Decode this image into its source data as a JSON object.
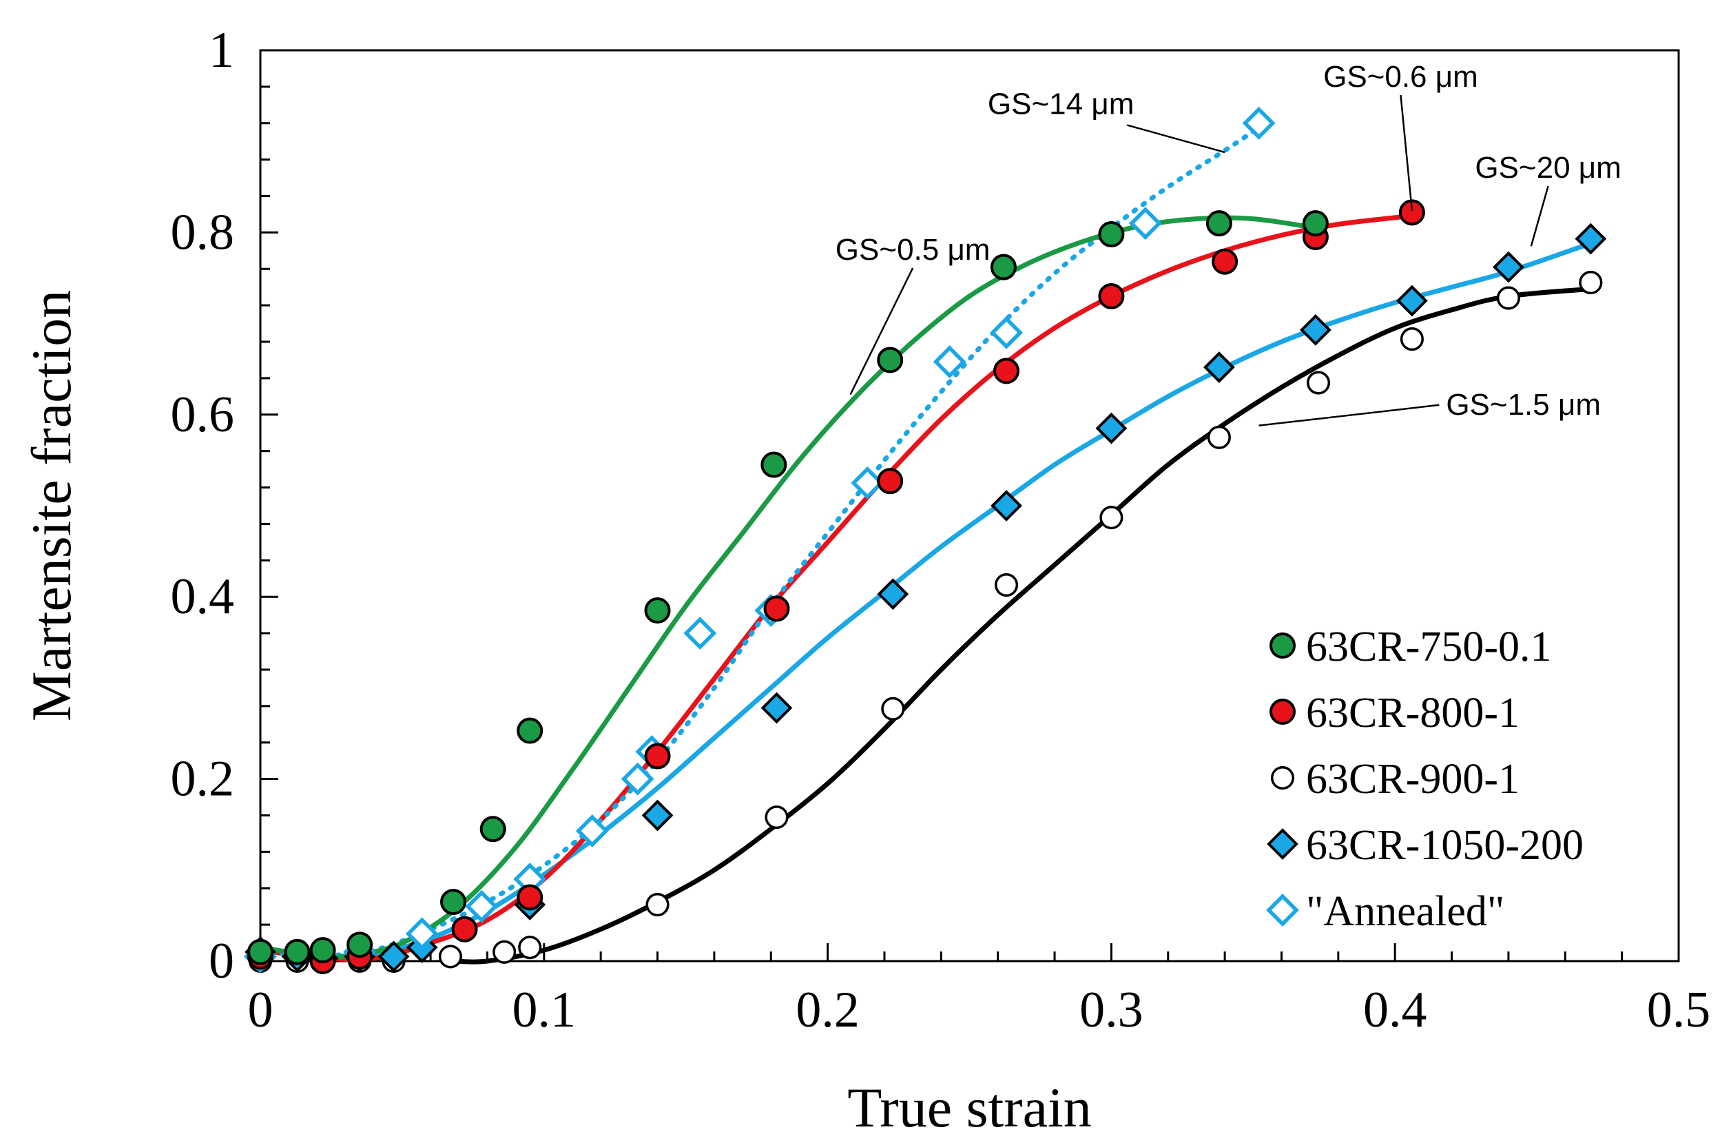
{
  "chart_data": {
    "type": "scatter",
    "title": "",
    "xlabel": "True strain",
    "ylabel": "Martensite fraction",
    "xlim": [
      0,
      0.5
    ],
    "ylim": [
      0,
      1
    ],
    "x_ticks": [
      "0",
      "0.1",
      "0.2",
      "0.3",
      "0.4",
      "0.5"
    ],
    "y_ticks": [
      "0",
      "0.2",
      "0.4",
      "0.6",
      "0.8",
      "1"
    ],
    "x_tick_values": [
      0,
      0.1,
      0.2,
      0.3,
      0.4,
      0.5
    ],
    "y_tick_values": [
      0,
      0.2,
      0.4,
      0.6,
      0.8,
      1
    ],
    "grid": false,
    "legend_position": "bottom-right",
    "series": [
      {
        "name": "63CR-750-0.1",
        "marker": "circle-filled",
        "color": "#1a9a45",
        "line_color": "#1a9a45",
        "line_style": "solid",
        "points": [
          [
            0.0,
            0.01
          ],
          [
            0.013,
            0.01
          ],
          [
            0.022,
            0.012
          ],
          [
            0.035,
            0.018
          ],
          [
            0.068,
            0.065
          ],
          [
            0.082,
            0.145
          ],
          [
            0.095,
            0.253
          ],
          [
            0.14,
            0.385
          ],
          [
            0.181,
            0.545
          ],
          [
            0.222,
            0.66
          ],
          [
            0.262,
            0.762
          ],
          [
            0.3,
            0.798
          ],
          [
            0.338,
            0.81
          ],
          [
            0.372,
            0.81
          ]
        ],
        "curve": [
          [
            0.0,
            0.015
          ],
          [
            0.015,
            0.008
          ],
          [
            0.03,
            0.005
          ],
          [
            0.05,
            0.02
          ],
          [
            0.07,
            0.06
          ],
          [
            0.09,
            0.125
          ],
          [
            0.11,
            0.21
          ],
          [
            0.13,
            0.3
          ],
          [
            0.15,
            0.39
          ],
          [
            0.17,
            0.47
          ],
          [
            0.19,
            0.55
          ],
          [
            0.21,
            0.62
          ],
          [
            0.23,
            0.68
          ],
          [
            0.25,
            0.73
          ],
          [
            0.27,
            0.765
          ],
          [
            0.29,
            0.79
          ],
          [
            0.31,
            0.807
          ],
          [
            0.33,
            0.815
          ],
          [
            0.35,
            0.815
          ],
          [
            0.372,
            0.805
          ]
        ]
      },
      {
        "name": "63CR-800-1",
        "marker": "circle-filled",
        "color": "#e8121b",
        "line_color": "#e8121b",
        "line_style": "solid",
        "points": [
          [
            0.0,
            0.005
          ],
          [
            0.022,
            0.0
          ],
          [
            0.035,
            0.005
          ],
          [
            0.072,
            0.035
          ],
          [
            0.095,
            0.07
          ],
          [
            0.14,
            0.225
          ],
          [
            0.182,
            0.387
          ],
          [
            0.222,
            0.527
          ],
          [
            0.263,
            0.648
          ],
          [
            0.3,
            0.73
          ],
          [
            0.34,
            0.768
          ],
          [
            0.372,
            0.795
          ],
          [
            0.406,
            0.822
          ]
        ],
        "curve": [
          [
            0.0,
            0.012
          ],
          [
            0.02,
            0.004
          ],
          [
            0.04,
            0.003
          ],
          [
            0.06,
            0.02
          ],
          [
            0.08,
            0.045
          ],
          [
            0.1,
            0.09
          ],
          [
            0.12,
            0.155
          ],
          [
            0.14,
            0.23
          ],
          [
            0.16,
            0.31
          ],
          [
            0.18,
            0.39
          ],
          [
            0.2,
            0.46
          ],
          [
            0.22,
            0.53
          ],
          [
            0.24,
            0.595
          ],
          [
            0.26,
            0.65
          ],
          [
            0.28,
            0.695
          ],
          [
            0.3,
            0.73
          ],
          [
            0.32,
            0.758
          ],
          [
            0.34,
            0.78
          ],
          [
            0.36,
            0.797
          ],
          [
            0.38,
            0.809
          ],
          [
            0.405,
            0.818
          ]
        ]
      },
      {
        "name": "63CR-900-1",
        "marker": "circle-open",
        "color": "#000000",
        "line_color": "#000000",
        "line_style": "solid",
        "points": [
          [
            0.0,
            0.0
          ],
          [
            0.013,
            0.0
          ],
          [
            0.022,
            0.0
          ],
          [
            0.035,
            0.0
          ],
          [
            0.047,
            0.0
          ],
          [
            0.067,
            0.005
          ],
          [
            0.086,
            0.01
          ],
          [
            0.095,
            0.015
          ],
          [
            0.14,
            0.062
          ],
          [
            0.182,
            0.158
          ],
          [
            0.223,
            0.277
          ],
          [
            0.263,
            0.413
          ],
          [
            0.3,
            0.487
          ],
          [
            0.338,
            0.575
          ],
          [
            0.373,
            0.635
          ],
          [
            0.406,
            0.683
          ],
          [
            0.44,
            0.728
          ],
          [
            0.469,
            0.745
          ]
        ],
        "curve": [
          [
            0.068,
            0.0
          ],
          [
            0.08,
            0.0
          ],
          [
            0.1,
            0.012
          ],
          [
            0.12,
            0.035
          ],
          [
            0.14,
            0.065
          ],
          [
            0.16,
            0.1
          ],
          [
            0.18,
            0.145
          ],
          [
            0.2,
            0.195
          ],
          [
            0.22,
            0.255
          ],
          [
            0.24,
            0.32
          ],
          [
            0.26,
            0.38
          ],
          [
            0.28,
            0.435
          ],
          [
            0.3,
            0.49
          ],
          [
            0.32,
            0.545
          ],
          [
            0.34,
            0.59
          ],
          [
            0.36,
            0.63
          ],
          [
            0.38,
            0.665
          ],
          [
            0.4,
            0.695
          ],
          [
            0.42,
            0.715
          ],
          [
            0.44,
            0.73
          ],
          [
            0.469,
            0.738
          ]
        ]
      },
      {
        "name": "63CR-1050-200",
        "marker": "diamond-filled",
        "color": "#1aa7e6",
        "line_color": "#1aa7e6",
        "line_style": "solid",
        "points": [
          [
            0.0,
            0.01
          ],
          [
            0.013,
            0.005
          ],
          [
            0.022,
            0.003
          ],
          [
            0.035,
            0.005
          ],
          [
            0.047,
            0.005
          ],
          [
            0.057,
            0.015
          ],
          [
            0.095,
            0.062
          ],
          [
            0.14,
            0.16
          ],
          [
            0.182,
            0.278
          ],
          [
            0.223,
            0.403
          ],
          [
            0.263,
            0.5
          ],
          [
            0.3,
            0.585
          ],
          [
            0.338,
            0.652
          ],
          [
            0.372,
            0.693
          ],
          [
            0.406,
            0.725
          ],
          [
            0.44,
            0.762
          ],
          [
            0.469,
            0.793
          ]
        ],
        "curve": [
          [
            0.0,
            0.012
          ],
          [
            0.02,
            0.006
          ],
          [
            0.04,
            0.008
          ],
          [
            0.06,
            0.025
          ],
          [
            0.08,
            0.055
          ],
          [
            0.1,
            0.095
          ],
          [
            0.12,
            0.14
          ],
          [
            0.14,
            0.19
          ],
          [
            0.16,
            0.245
          ],
          [
            0.18,
            0.3
          ],
          [
            0.2,
            0.355
          ],
          [
            0.22,
            0.405
          ],
          [
            0.24,
            0.455
          ],
          [
            0.26,
            0.5
          ],
          [
            0.28,
            0.545
          ],
          [
            0.3,
            0.583
          ],
          [
            0.32,
            0.62
          ],
          [
            0.34,
            0.652
          ],
          [
            0.36,
            0.68
          ],
          [
            0.38,
            0.703
          ],
          [
            0.4,
            0.723
          ],
          [
            0.42,
            0.74
          ],
          [
            0.44,
            0.757
          ],
          [
            0.469,
            0.788
          ]
        ]
      },
      {
        "name": "\"Annealed\"",
        "marker": "diamond-open",
        "color": "#1aa7e6",
        "line_color": "#1aa7e6",
        "line_style": "dotted",
        "points": [
          [
            0.0,
            0.005
          ],
          [
            0.035,
            0.01
          ],
          [
            0.057,
            0.03
          ],
          [
            0.078,
            0.06
          ],
          [
            0.095,
            0.09
          ],
          [
            0.117,
            0.143
          ],
          [
            0.133,
            0.2
          ],
          [
            0.138,
            0.23
          ],
          [
            0.155,
            0.36
          ],
          [
            0.18,
            0.385
          ],
          [
            0.214,
            0.525
          ],
          [
            0.243,
            0.658
          ],
          [
            0.263,
            0.69
          ],
          [
            0.312,
            0.81
          ],
          [
            0.352,
            0.92
          ]
        ],
        "curve": [
          [
            0.0,
            0.01
          ],
          [
            0.02,
            0.006
          ],
          [
            0.04,
            0.012
          ],
          [
            0.06,
            0.035
          ],
          [
            0.08,
            0.065
          ],
          [
            0.1,
            0.105
          ],
          [
            0.12,
            0.155
          ],
          [
            0.14,
            0.22
          ],
          [
            0.16,
            0.3
          ],
          [
            0.18,
            0.39
          ],
          [
            0.2,
            0.47
          ],
          [
            0.22,
            0.55
          ],
          [
            0.24,
            0.625
          ],
          [
            0.26,
            0.695
          ],
          [
            0.28,
            0.755
          ],
          [
            0.3,
            0.805
          ],
          [
            0.32,
            0.85
          ],
          [
            0.34,
            0.89
          ],
          [
            0.352,
            0.915
          ]
        ]
      }
    ],
    "annotations": [
      {
        "text": "GS~14 μm",
        "x": 0.308,
        "y": 0.93,
        "target_x": 0.34,
        "target_y": 0.888,
        "anchor": "end"
      },
      {
        "text": "GS~0.6 μm",
        "x": 0.402,
        "y": 0.96,
        "target_x": 0.406,
        "target_y": 0.824,
        "anchor": "middle"
      },
      {
        "text": "GS~20 μm",
        "x": 0.454,
        "y": 0.86,
        "target_x": 0.448,
        "target_y": 0.785,
        "anchor": "middle"
      },
      {
        "text": "GS~0.5 μm",
        "x": 0.23,
        "y": 0.77,
        "target_x": 0.208,
        "target_y": 0.622,
        "anchor": "middle"
      },
      {
        "text": "GS~1.5 μm",
        "x": 0.418,
        "y": 0.6,
        "target_x": 0.352,
        "target_y": 0.588,
        "anchor": "start"
      }
    ]
  }
}
